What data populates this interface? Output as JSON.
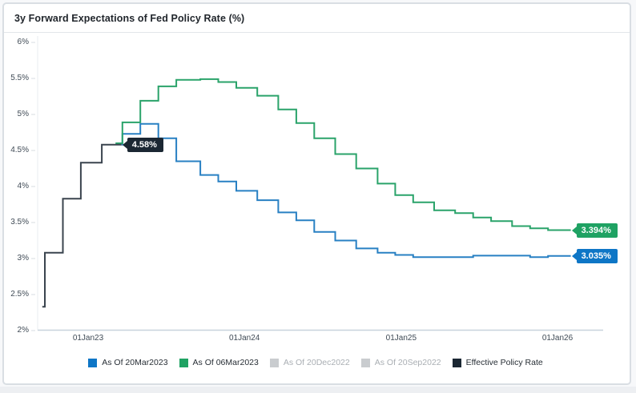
{
  "window": {
    "title": "3y Forward Expectations of Fed Policy Rate (%)"
  },
  "chart_data": {
    "type": "line",
    "subtype": "step-after",
    "title": "3y Forward Expectations of Fed Policy Rate (%)",
    "grid": "off",
    "legend_position": "bottom-center",
    "y_axis": {
      "min": 2,
      "max": 6,
      "unit": "%",
      "tick_step": 0.5,
      "ticks": [
        {
          "value": 6,
          "label": "6%"
        },
        {
          "value": 5.5,
          "label": "5.5%"
        },
        {
          "value": 5,
          "label": "5%"
        },
        {
          "value": 4.5,
          "label": "4.5%"
        },
        {
          "value": 4,
          "label": "4%"
        },
        {
          "value": 3.5,
          "label": "3.5%"
        },
        {
          "value": 3,
          "label": "3%"
        },
        {
          "value": 2.5,
          "label": "2.5%"
        },
        {
          "value": 2,
          "label": "2%"
        }
      ]
    },
    "x_axis": {
      "ticks": [
        {
          "date": "2023-01-01",
          "label": "01Jan23"
        },
        {
          "date": "2024-01-01",
          "label": "01Jan24"
        },
        {
          "date": "2025-01-01",
          "label": "01Jan25"
        },
        {
          "date": "2026-01-01",
          "label": "01Jan26"
        }
      ]
    },
    "series": [
      {
        "name": "As Of 20Mar2023",
        "visible": true,
        "muted": false,
        "line_color": "#2880c3",
        "badge_color": "#0e76c6",
        "end_label": "3.035%",
        "steps": [
          [
            "2023-03-20",
            4.58
          ],
          [
            "2023-03-22",
            4.73
          ],
          [
            "2023-05-03",
            4.87
          ],
          [
            "2023-06-14",
            4.67
          ],
          [
            "2023-07-26",
            4.35
          ],
          [
            "2023-09-20",
            4.16
          ],
          [
            "2023-11-01",
            4.07
          ],
          [
            "2023-12-13",
            3.94
          ],
          [
            "2024-01-31",
            3.81
          ],
          [
            "2024-03-20",
            3.64
          ],
          [
            "2024-05-01",
            3.53
          ],
          [
            "2024-06-12",
            3.37
          ],
          [
            "2024-07-31",
            3.25
          ],
          [
            "2024-09-18",
            3.14
          ],
          [
            "2024-11-07",
            3.08
          ],
          [
            "2024-12-18",
            3.05
          ],
          [
            "2025-01-29",
            3.02
          ],
          [
            "2025-06-18",
            3.04
          ],
          [
            "2025-10-29",
            3.02
          ],
          [
            "2025-12-10",
            3.035
          ],
          [
            "2026-02-01",
            3.035
          ]
        ]
      },
      {
        "name": "As Of 06Mar2023",
        "visible": true,
        "muted": false,
        "line_color": "#2aa36a",
        "badge_color": "#1fa263",
        "end_label": "3.394%",
        "steps": [
          [
            "2023-03-06",
            4.6
          ],
          [
            "2023-03-22",
            4.89
          ],
          [
            "2023-05-03",
            5.19
          ],
          [
            "2023-06-14",
            5.39
          ],
          [
            "2023-07-26",
            5.48
          ],
          [
            "2023-09-20",
            5.49
          ],
          [
            "2023-11-01",
            5.45
          ],
          [
            "2023-12-13",
            5.37
          ],
          [
            "2024-01-31",
            5.26
          ],
          [
            "2024-03-20",
            5.07
          ],
          [
            "2024-05-01",
            4.88
          ],
          [
            "2024-06-12",
            4.67
          ],
          [
            "2024-07-31",
            4.45
          ],
          [
            "2024-09-18",
            4.25
          ],
          [
            "2024-11-07",
            4.04
          ],
          [
            "2024-12-18",
            3.88
          ],
          [
            "2025-01-29",
            3.78
          ],
          [
            "2025-03-19",
            3.67
          ],
          [
            "2025-05-07",
            3.63
          ],
          [
            "2025-06-18",
            3.57
          ],
          [
            "2025-07-30",
            3.52
          ],
          [
            "2025-09-17",
            3.45
          ],
          [
            "2025-10-29",
            3.42
          ],
          [
            "2025-12-10",
            3.394
          ],
          [
            "2026-02-01",
            3.394
          ]
        ]
      },
      {
        "name": "As Of 20Dec2022",
        "visible": false,
        "muted": true,
        "line_color": "#c9cccf",
        "badge_color": "#c9cccf",
        "end_label": "",
        "steps": []
      },
      {
        "name": "As Of 20Sep2022",
        "visible": false,
        "muted": true,
        "line_color": "#c9cccf",
        "badge_color": "#c9cccf",
        "end_label": "",
        "steps": []
      },
      {
        "name": "Effective Policy Rate",
        "visible": true,
        "muted": false,
        "line_color": "#3a444e",
        "badge_color": "#1b2733",
        "end_label": "4.58%",
        "steps": [
          [
            "2022-09-16",
            2.33
          ],
          [
            "2022-09-22",
            3.08
          ],
          [
            "2022-11-03",
            3.83
          ],
          [
            "2022-12-15",
            4.33
          ],
          [
            "2023-02-02",
            4.58
          ],
          [
            "2023-03-20",
            4.58
          ]
        ]
      }
    ]
  },
  "colors": {
    "axis_line": "#c8d3dd",
    "plot_left_border": "#e9edf1",
    "tick_dash": "#d7dce1",
    "tick_text": "#3f4a55",
    "card_border": "#d9dee3",
    "title_text": "#21262c",
    "muted_legend_text": "#a9aeb3"
  }
}
